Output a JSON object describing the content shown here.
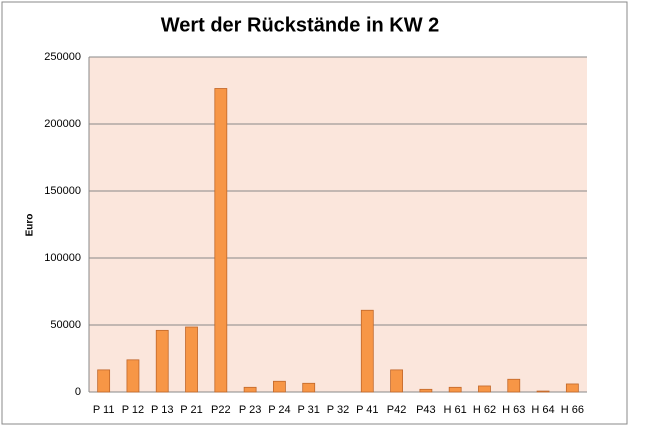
{
  "chart_data": {
    "type": "bar",
    "title": "Wert der Rückstände in KW 2",
    "y_label": "Euro",
    "categories": [
      "P 11",
      "P 12",
      "P 13",
      "P 21",
      "P22",
      "P 23",
      "P 24",
      "P 31",
      "P 32",
      "P 41",
      "P42",
      "P43",
      "H 61",
      "H 62",
      "H 63",
      "H 64",
      "H 66"
    ],
    "values": [
      16500,
      24000,
      46000,
      48500,
      226500,
      3500,
      8000,
      6500,
      0,
      61000,
      16500,
      2000,
      3500,
      4500,
      9500,
      700,
      6000
    ],
    "color": "#f79646",
    "ylim": [
      0,
      250000
    ],
    "yticks": [
      0,
      50000,
      100000,
      150000,
      200000,
      250000
    ],
    "grid": true
  }
}
